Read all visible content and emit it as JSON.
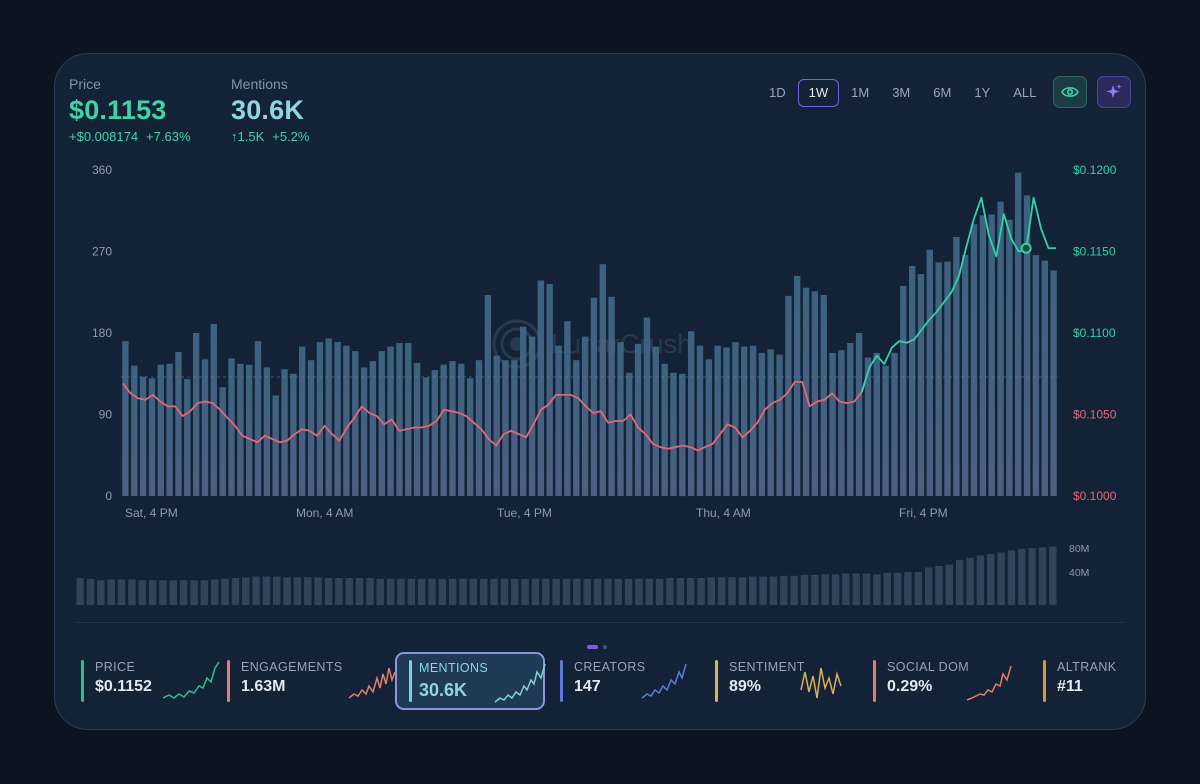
{
  "header": {
    "price": {
      "label": "Price",
      "value": "$0.1153",
      "change_abs": "+$0.008174",
      "change_pct": "+7.63%"
    },
    "mentions": {
      "label": "Mentions",
      "value": "30.6K",
      "change_abs": "↑1.5K",
      "change_pct": "+5.2%"
    }
  },
  "periods": [
    {
      "label": "1D",
      "active": false
    },
    {
      "label": "1W",
      "active": true
    },
    {
      "label": "1M",
      "active": false
    },
    {
      "label": "3M",
      "active": false
    },
    {
      "label": "6M",
      "active": false
    },
    {
      "label": "1Y",
      "active": false
    },
    {
      "label": "ALL",
      "active": false
    }
  ],
  "watermark": {
    "icon": "lunarcrush-logo-icon",
    "text": "LunarCrush"
  },
  "colors": {
    "bar": "#3f6a87",
    "price_up": "#2fd3a6",
    "price_down": "#e46679",
    "volume": "#34425a",
    "accent": "#7561e8"
  },
  "chart_data": {
    "type": "bar",
    "x_ticks": [
      "Sat, 4 PM",
      "Mon, 4 AM",
      "Tue, 4 PM",
      "Thu, 4 AM",
      "Fri, 4 PM"
    ],
    "y_left": {
      "ticks": [
        "0",
        "90",
        "180",
        "270",
        "360"
      ],
      "range": [
        0,
        360
      ]
    },
    "y_right": {
      "ticks": [
        "$0.1000",
        "$0.1050",
        "$0.1100",
        "$0.1150",
        "$0.1200"
      ],
      "range": [
        0.1,
        0.12
      ]
    },
    "volume_axis": {
      "ticks": [
        "40M",
        "80M"
      ]
    },
    "reference_price": 0.1073,
    "series": [
      {
        "name": "Mentions",
        "axis": "left",
        "type": "bar",
        "values": [
          171,
          144,
          132,
          130,
          145,
          146,
          159,
          129,
          180,
          151,
          190,
          120,
          152,
          146,
          145,
          171,
          142,
          111,
          140,
          135,
          165,
          150,
          170,
          174,
          170,
          166,
          160,
          142,
          149,
          160,
          165,
          169,
          169,
          147,
          131,
          139,
          145,
          149,
          146,
          130,
          150,
          222,
          155,
          150,
          150,
          187,
          176,
          238,
          234,
          166,
          193,
          150,
          176,
          219,
          256,
          220,
          170,
          136,
          168,
          197,
          165,
          146,
          136,
          135,
          182,
          166,
          151,
          166,
          164,
          170,
          165,
          166,
          158,
          162,
          156,
          221,
          243,
          230,
          226,
          222,
          158,
          161,
          169,
          180,
          153,
          158,
          144,
          158,
          232,
          254,
          245,
          272,
          258,
          259,
          286,
          266,
          300,
          310,
          311,
          325,
          305,
          357,
          332,
          266,
          260,
          249
        ]
      },
      {
        "name": "Price",
        "axis": "right",
        "type": "line",
        "values": [
          0.1069,
          0.1063,
          0.106,
          0.1059,
          0.1062,
          0.1058,
          0.1055,
          0.1055,
          0.1049,
          0.1052,
          0.1057,
          0.1058,
          0.1057,
          0.1053,
          0.1048,
          0.1043,
          0.1037,
          0.1035,
          0.1033,
          0.1037,
          0.1035,
          0.1033,
          0.1034,
          0.1038,
          0.1041,
          0.104,
          0.1037,
          0.1043,
          0.1038,
          0.1034,
          0.1042,
          0.1048,
          0.1055,
          0.1051,
          0.1049,
          0.1044,
          0.1047,
          0.104,
          0.1041,
          0.1042,
          0.1042,
          0.1043,
          0.1046,
          0.1053,
          0.1052,
          0.1051,
          0.1049,
          0.1045,
          0.1041,
          0.1035,
          0.1031,
          0.1038,
          0.104,
          0.1038,
          0.1036,
          0.1044,
          0.1053,
          0.1056,
          0.1062,
          0.1062,
          0.1062,
          0.106,
          0.1055,
          0.1051,
          0.1052,
          0.1045,
          0.1046,
          0.1046,
          0.105,
          0.1042,
          0.1038,
          0.1032,
          0.103,
          0.1029,
          0.103,
          0.1031,
          0.103,
          0.1028,
          0.103,
          0.1032,
          0.1038,
          0.1044,
          0.1042,
          0.1036,
          0.104,
          0.1045,
          0.1053,
          0.1057,
          0.1059,
          0.1063,
          0.107,
          0.107,
          0.1055,
          0.1058,
          0.1059,
          0.1063,
          0.1058,
          0.1057,
          0.1058,
          0.1064,
          0.1079,
          0.1086,
          0.1081,
          0.1091,
          0.1095,
          0.1094,
          0.1096,
          0.1102,
          0.1108,
          0.1113,
          0.1119,
          0.1125,
          0.1135,
          0.1153,
          0.117,
          0.1183,
          0.116,
          0.1147,
          0.1173,
          0.1158,
          0.115,
          0.1151,
          0.1183,
          0.1164,
          0.1152,
          0.1152
        ]
      },
      {
        "name": "Volume",
        "axis": "volume",
        "type": "bar",
        "values": [
          36,
          35,
          33,
          34,
          34,
          34,
          33,
          33,
          33,
          33,
          33,
          33,
          33,
          34,
          35,
          36,
          37,
          38,
          38,
          38,
          37,
          37,
          37,
          37,
          36,
          36,
          36,
          36,
          36,
          35,
          35,
          35,
          35,
          35,
          35,
          35,
          35,
          35,
          35,
          35,
          35,
          35,
          35,
          35,
          35,
          35,
          35,
          35,
          35,
          35,
          35,
          35,
          35,
          35,
          35,
          35,
          35,
          36,
          36,
          36,
          36,
          37,
          37,
          37,
          37,
          38,
          38,
          38,
          39,
          39,
          40,
          40,
          41,
          41,
          42,
          42,
          42,
          41,
          43,
          43,
          44,
          44,
          50,
          52,
          54,
          60,
          63,
          66,
          68,
          70,
          73,
          75,
          76,
          77,
          78
        ]
      }
    ],
    "highlight_point": {
      "series": "Price",
      "value": 0.1152
    },
    "grid": false,
    "legend": "none"
  },
  "metrics": [
    {
      "label": "PRICE",
      "value": "$0.1152",
      "color": "#2bbf8f",
      "active": false
    },
    {
      "label": "ENGAGEMENTS",
      "value": "1.63M",
      "color": "#e3806b",
      "active": false
    },
    {
      "label": "MENTIONS",
      "value": "30.6K",
      "color": "#7fd0d8",
      "active": true
    },
    {
      "label": "CREATORS",
      "value": "147",
      "color": "#5a7bdc",
      "active": false
    },
    {
      "label": "SENTIMENT",
      "value": "89%",
      "color": "#d6b25b",
      "active": false
    },
    {
      "label": "SOCIAL DOM",
      "value": "0.29%",
      "color": "#e57a6b",
      "active": false
    },
    {
      "label": "ALTRANK",
      "value": "#11",
      "color": "#d69a3a",
      "active": false
    }
  ],
  "pagination": {
    "pages": 2,
    "current": 1
  }
}
